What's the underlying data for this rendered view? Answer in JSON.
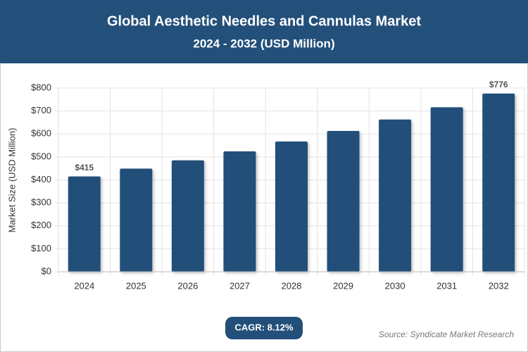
{
  "chart_data": {
    "type": "bar",
    "title": "Global Aesthetic Needles and Cannulas Market",
    "subtitle": "2024 - 2032 (USD Million)",
    "y_label": "Market Size (USD Million)",
    "categories": [
      "2024",
      "2025",
      "2026",
      "2027",
      "2028",
      "2029",
      "2030",
      "2031",
      "2032"
    ],
    "values": [
      415,
      449,
      485,
      524,
      567,
      613,
      663,
      716,
      776
    ],
    "value_labels": [
      "$415",
      null,
      null,
      null,
      null,
      null,
      null,
      null,
      "$776"
    ],
    "color": "#23507a",
    "ylim": [
      0,
      800
    ],
    "yticks": [
      {
        "value": 0,
        "label": "$0"
      },
      {
        "value": 100,
        "label": "$100"
      },
      {
        "value": 200,
        "label": "$200"
      },
      {
        "value": 300,
        "label": "$300"
      },
      {
        "value": 400,
        "label": "$400"
      },
      {
        "value": 500,
        "label": "$500"
      },
      {
        "value": 600,
        "label": "$600"
      },
      {
        "value": 700,
        "label": "$700"
      },
      {
        "value": 800,
        "label": "$800"
      }
    ],
    "grid": true,
    "annotation": "CAGR: 8.12%",
    "source": "Source: Syndicate Market Research"
  }
}
